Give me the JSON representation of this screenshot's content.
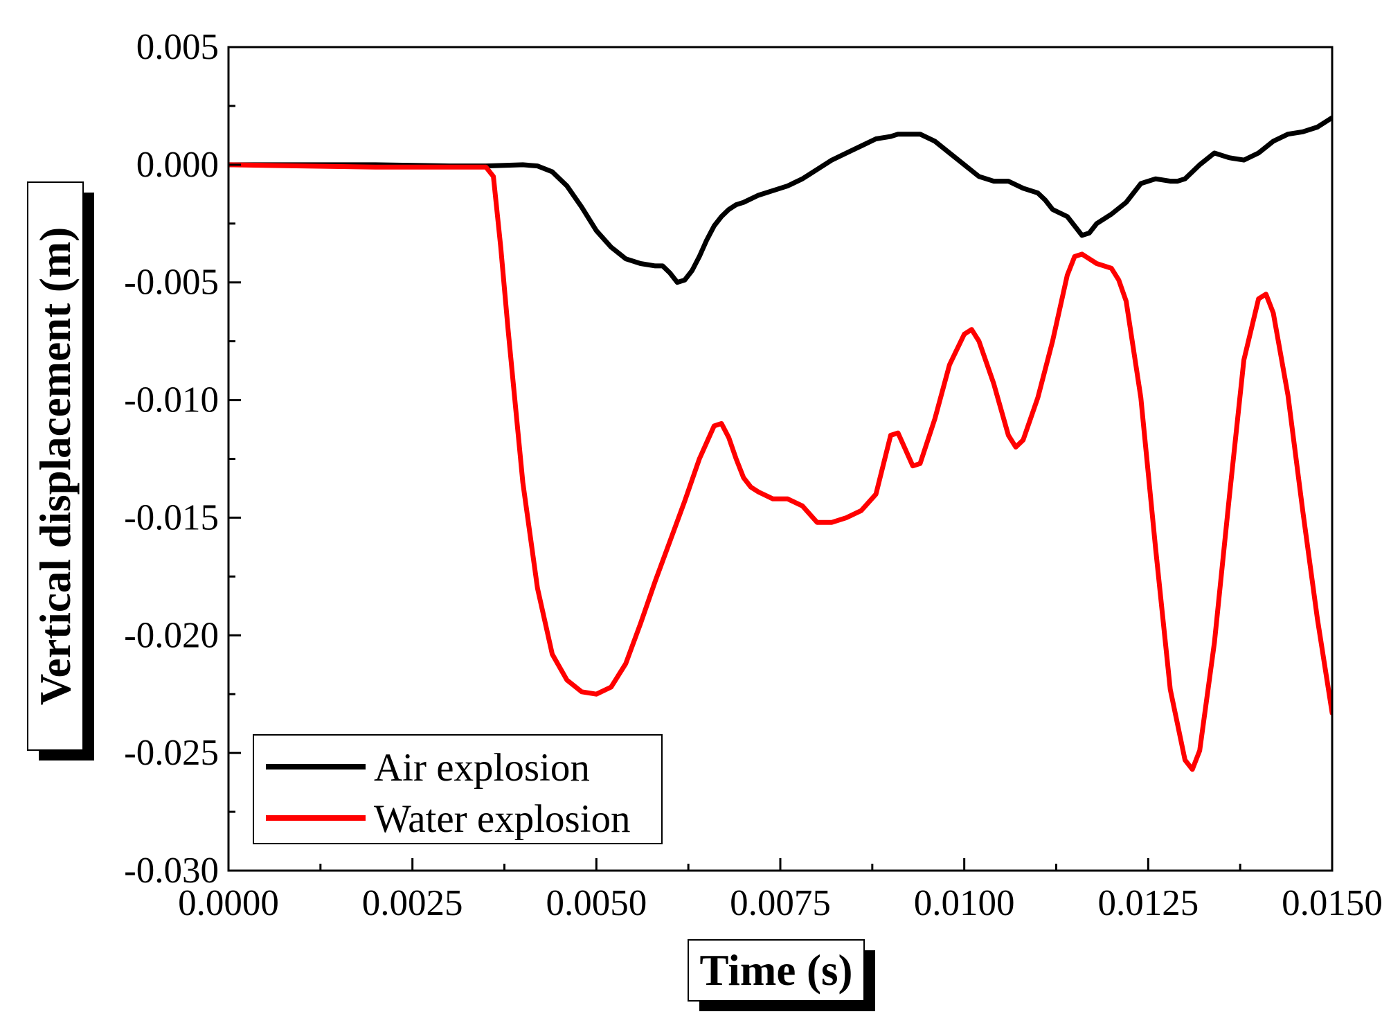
{
  "chart_data": {
    "type": "line",
    "title": "",
    "xlabel": "Time (s)",
    "ylabel": "Vertical displacement (m)",
    "xlim": [
      0,
      0.015
    ],
    "ylim": [
      -0.03,
      0.005
    ],
    "x_ticks": [
      0,
      0.0025,
      0.005,
      0.0075,
      0.01,
      0.0125,
      0.015
    ],
    "x_tick_labels": [
      "0.0000",
      "0.0025",
      "0.0050",
      "0.0075",
      "0.0100",
      "0.0125",
      "0.0150"
    ],
    "y_ticks": [
      0.005,
      0,
      -0.005,
      -0.01,
      -0.015,
      -0.02,
      -0.025,
      -0.03
    ],
    "y_tick_labels": [
      "0.005",
      "0.000",
      "-0.005",
      "-0.010",
      "-0.015",
      "-0.020",
      "-0.025",
      "-0.030"
    ],
    "grid": false,
    "legend": {
      "position": "bottom-left",
      "entries": [
        "Air explosion",
        "Water explosion"
      ]
    },
    "series": [
      {
        "name": "Air explosion",
        "color": "#000000",
        "x": [
          0,
          0.001,
          0.002,
          0.003,
          0.0035,
          0.004,
          0.0042,
          0.0044,
          0.0046,
          0.0048,
          0.005,
          0.0052,
          0.0054,
          0.0056,
          0.0058,
          0.0059,
          0.006,
          0.0061,
          0.0062,
          0.0063,
          0.0064,
          0.0065,
          0.0066,
          0.0067,
          0.0068,
          0.0069,
          0.007,
          0.0072,
          0.0074,
          0.0076,
          0.0078,
          0.008,
          0.0082,
          0.0084,
          0.0086,
          0.0088,
          0.009,
          0.0091,
          0.0092,
          0.0094,
          0.0096,
          0.0098,
          0.01,
          0.0102,
          0.0104,
          0.0105,
          0.0106,
          0.0108,
          0.011,
          0.0111,
          0.0112,
          0.0114,
          0.0115,
          0.0116,
          0.0117,
          0.0118,
          0.012,
          0.0122,
          0.0124,
          0.0126,
          0.0128,
          0.0129,
          0.013,
          0.0132,
          0.0134,
          0.0136,
          0.0138,
          0.014,
          0.0142,
          0.0144,
          0.0146,
          0.0148,
          0.015
        ],
        "y": [
          0,
          0,
          0,
          -5e-05,
          -5e-05,
          0,
          -5e-05,
          -0.0003,
          -0.0009,
          -0.0018,
          -0.0028,
          -0.0035,
          -0.004,
          -0.0042,
          -0.0043,
          -0.0043,
          -0.0046,
          -0.005,
          -0.0049,
          -0.0045,
          -0.0039,
          -0.0032,
          -0.0026,
          -0.0022,
          -0.0019,
          -0.0017,
          -0.0016,
          -0.0013,
          -0.0011,
          -0.0009,
          -0.0006,
          -0.0002,
          0.0002,
          0.0005,
          0.0008,
          0.0011,
          0.0012,
          0.0013,
          0.0013,
          0.0013,
          0.001,
          0.0005,
          0,
          -0.0005,
          -0.0007,
          -0.0007,
          -0.0007,
          -0.001,
          -0.0012,
          -0.0015,
          -0.0019,
          -0.0022,
          -0.0026,
          -0.003,
          -0.0029,
          -0.0025,
          -0.0021,
          -0.0016,
          -0.0008,
          -0.0006,
          -0.0007,
          -0.0007,
          -0.0006,
          0,
          0.0005,
          0.0003,
          0.0002,
          0.0005,
          0.001,
          0.0013,
          0.0014,
          0.0016,
          0.002
        ]
      },
      {
        "name": "Water explosion",
        "color": "#ff0000",
        "x": [
          0,
          0.001,
          0.002,
          0.003,
          0.0035,
          0.0036,
          0.0037,
          0.0038,
          0.004,
          0.0042,
          0.0044,
          0.0046,
          0.0048,
          0.005,
          0.0052,
          0.0054,
          0.0056,
          0.0058,
          0.006,
          0.0062,
          0.0064,
          0.0066,
          0.0067,
          0.0068,
          0.0069,
          0.007,
          0.0071,
          0.0072,
          0.0074,
          0.0076,
          0.0078,
          0.008,
          0.0082,
          0.0084,
          0.0086,
          0.0088,
          0.009,
          0.0091,
          0.0092,
          0.0093,
          0.0094,
          0.0096,
          0.0098,
          0.01,
          0.0101,
          0.0102,
          0.0104,
          0.0106,
          0.0107,
          0.0108,
          0.011,
          0.0112,
          0.0114,
          0.0115,
          0.0116,
          0.0118,
          0.012,
          0.0121,
          0.0122,
          0.0124,
          0.0126,
          0.0128,
          0.013,
          0.0131,
          0.0132,
          0.0134,
          0.0136,
          0.0138,
          0.014,
          0.0141,
          0.0142,
          0.0144,
          0.0146,
          0.0148,
          0.015
        ],
        "y": [
          0,
          -5e-05,
          -0.0001,
          -0.0001,
          -0.0001,
          -0.0005,
          -0.0035,
          -0.007,
          -0.0135,
          -0.018,
          -0.0208,
          -0.0219,
          -0.0224,
          -0.0225,
          -0.0222,
          -0.0212,
          -0.0195,
          -0.0177,
          -0.016,
          -0.0143,
          -0.0125,
          -0.0111,
          -0.011,
          -0.0116,
          -0.0125,
          -0.0133,
          -0.0137,
          -0.0139,
          -0.0142,
          -0.0142,
          -0.0145,
          -0.0152,
          -0.0152,
          -0.015,
          -0.0147,
          -0.014,
          -0.0115,
          -0.0114,
          -0.0121,
          -0.0128,
          -0.0127,
          -0.0108,
          -0.0085,
          -0.0072,
          -0.007,
          -0.0075,
          -0.0093,
          -0.0115,
          -0.012,
          -0.0117,
          -0.0099,
          -0.0075,
          -0.0047,
          -0.0039,
          -0.0038,
          -0.0042,
          -0.0044,
          -0.0049,
          -0.0058,
          -0.0099,
          -0.0163,
          -0.0223,
          -0.0253,
          -0.0257,
          -0.0249,
          -0.0203,
          -0.0142,
          -0.0083,
          -0.0057,
          -0.0055,
          -0.0063,
          -0.0098,
          -0.0147,
          -0.0193,
          -0.0233
        ]
      }
    ]
  }
}
